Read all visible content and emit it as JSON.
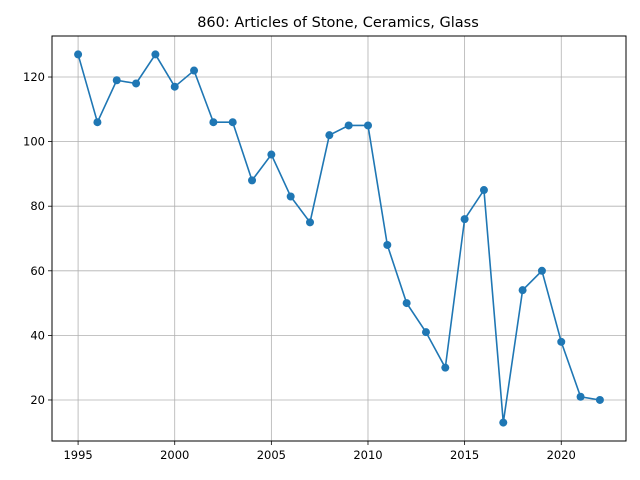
{
  "chart_data": {
    "type": "line",
    "title": "860: Articles of Stone, Ceramics, Glass",
    "xlabel": "",
    "ylabel": "",
    "x": [
      1995,
      1996,
      1997,
      1998,
      1999,
      2000,
      2001,
      2002,
      2003,
      2004,
      2005,
      2006,
      2007,
      2008,
      2009,
      2010,
      2011,
      2012,
      2013,
      2014,
      2015,
      2016,
      2017,
      2018,
      2019,
      2020,
      2021,
      2022
    ],
    "series": [
      {
        "values": [
          127,
          106,
          119,
          118,
          127,
          117,
          122,
          106,
          106,
          88,
          96,
          83,
          75,
          102,
          105,
          105,
          68,
          50,
          41,
          30,
          76,
          85,
          13,
          54,
          60,
          38,
          21,
          20
        ],
        "color": "#1f77b4",
        "marker": "circle"
      }
    ],
    "xlim": [
      1993.65,
      1994.0
    ],
    "xrange": [
      1993.65,
      2023.35
    ],
    "ylim": [
      7.3,
      132.7
    ],
    "xticks": [
      "1995",
      "2000",
      "2005",
      "2010",
      "2015",
      "2020"
    ],
    "yticks": [
      "20",
      "40",
      "60",
      "80",
      "100",
      "120"
    ],
    "grid": true,
    "legend": "none"
  }
}
